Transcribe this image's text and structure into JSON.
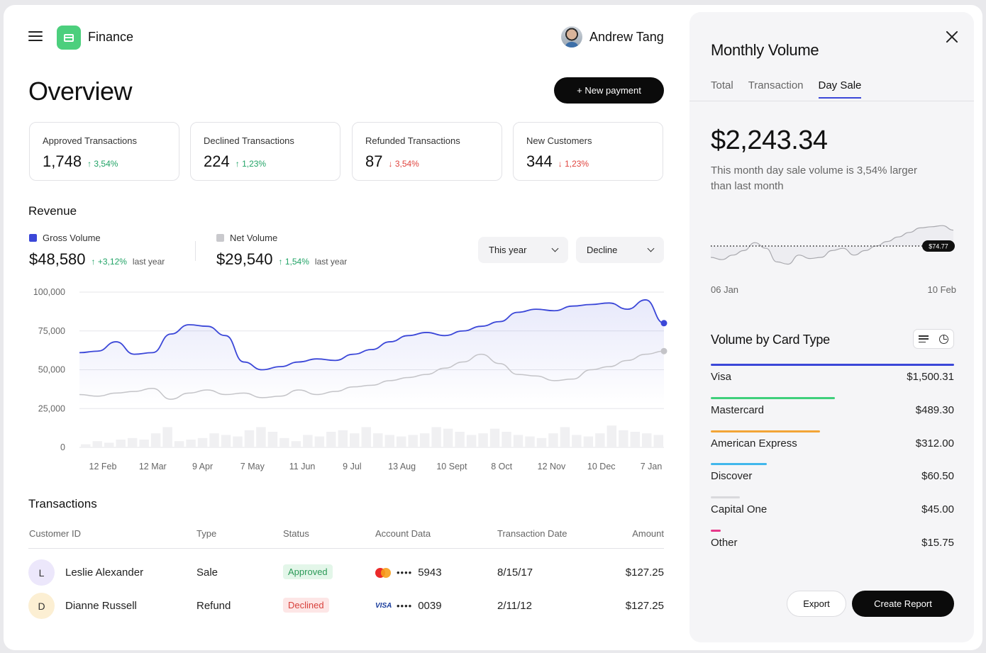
{
  "header": {
    "app_name": "Finance",
    "user_name": "Andrew Tang"
  },
  "page_title": "Overview",
  "new_payment_label": "+ New payment",
  "stats": [
    {
      "label": "Approved Transactions",
      "value": "1,748",
      "change": "3,54%",
      "direction": "up"
    },
    {
      "label": "Declined Transactions",
      "value": "224",
      "change": "1,23%",
      "direction": "up"
    },
    {
      "label": "Refunded Transactions",
      "value": "87",
      "change": "3,54%",
      "direction": "down"
    },
    {
      "label": "New Customers",
      "value": "344",
      "change": "1,23%",
      "direction": "down"
    }
  ],
  "revenue": {
    "title": "Revenue",
    "gross": {
      "label": "Gross Volume",
      "value": "$48,580",
      "change": "+3,12%",
      "suffix": "last year",
      "color": "#3b47d8"
    },
    "net": {
      "label": "Net Volume",
      "value": "$29,540",
      "change": "1,54%",
      "suffix": "last year",
      "color": "#c9c9cd"
    },
    "dropdowns": {
      "period": "This year",
      "trend": "Decline"
    }
  },
  "chart_data": {
    "type": "line",
    "ylim": [
      0,
      100000
    ],
    "y_ticks": [
      "100,000",
      "75,000",
      "50,000",
      "25,000",
      "0"
    ],
    "x_ticks": [
      "12 Feb",
      "12 Mar",
      "9 Apr",
      "7 May",
      "11 Jun",
      "9 Jul",
      "13 Aug",
      "10 Sept",
      "8 Oct",
      "12 Nov",
      "10 Dec",
      "7 Jan"
    ],
    "series": [
      {
        "name": "Gross Volume",
        "color": "#3b47d8",
        "values": [
          61000,
          62000,
          68000,
          60000,
          61000,
          73000,
          79000,
          78000,
          72000,
          55000,
          50000,
          52000,
          55000,
          57000,
          56000,
          60000,
          63000,
          68000,
          72000,
          74000,
          72000,
          75000,
          78000,
          81000,
          87000,
          89000,
          88000,
          91000,
          92000,
          93000,
          89000,
          95000,
          80000
        ]
      },
      {
        "name": "Net Volume",
        "color": "#c4c4c8",
        "values": [
          34000,
          33000,
          35000,
          36000,
          38000,
          31000,
          35000,
          37000,
          34000,
          35000,
          32000,
          33000,
          37000,
          34000,
          36000,
          39000,
          40000,
          43000,
          45000,
          47000,
          51000,
          55000,
          60000,
          54000,
          47000,
          46000,
          43000,
          44000,
          50000,
          52000,
          56000,
          60000,
          62000
        ]
      },
      {
        "name": "Bars",
        "color": "#f0f0f2",
        "values": [
          2,
          4,
          3,
          5,
          6,
          5,
          9,
          13,
          4,
          5,
          6,
          9,
          8,
          7,
          11,
          13,
          10,
          6,
          4,
          8,
          7,
          10,
          11,
          9,
          13,
          9,
          8,
          7,
          8,
          9,
          13,
          12,
          10,
          8,
          9,
          12,
          10,
          8,
          7,
          6,
          9,
          13,
          8,
          7,
          9,
          14,
          11,
          10,
          9,
          8
        ]
      }
    ]
  },
  "transactions": {
    "title": "Transactions",
    "columns": [
      "Customer ID",
      "Type",
      "Status",
      "Account Data",
      "Transaction Date",
      "Amount"
    ],
    "rows": [
      {
        "initial": "L",
        "name": "Leslie Alexander",
        "type": "Sale",
        "status": "Approved",
        "status_kind": "ok",
        "card": "mastercard",
        "dots": "••••",
        "last4": "5943",
        "date": "8/15/17",
        "amount": "$127.25",
        "avatar_color": "#ece7fb"
      },
      {
        "initial": "D",
        "name": "Dianne Russell",
        "type": "Refund",
        "status": "Declined",
        "status_kind": "no",
        "card": "visa",
        "card_text": "VISA",
        "dots": "••••",
        "last4": "0039",
        "date": "2/11/12",
        "amount": "$127.25",
        "avatar_color": "#fcefd3"
      }
    ]
  },
  "panel": {
    "title": "Monthly Volume",
    "tabs": [
      "Total",
      "Transaction",
      "Day Sale"
    ],
    "active_tab": 2,
    "amount": "$2,243.34",
    "description": "This month day sale volume is 3,54% larger than last month",
    "spark": {
      "start_label": "06 Jan",
      "end_label": "10 Feb",
      "marker_label": "$74.77",
      "values": [
        50,
        48,
        52,
        56,
        63,
        58,
        46,
        44,
        52,
        49,
        50,
        56,
        58,
        52,
        56,
        60,
        64,
        68,
        72,
        76,
        77,
        78,
        74
      ],
      "baseline": 60
    },
    "card_types": {
      "title": "Volume by Card Type",
      "items": [
        {
          "label": "Visa",
          "value": "$1,500.31",
          "color": "#3b47d8",
          "share": 1.0
        },
        {
          "label": "Mastercard",
          "value": "$489.30",
          "color": "#3fcf7b",
          "share": 0.51
        },
        {
          "label": "American Express",
          "value": "$312.00",
          "color": "#f2a537",
          "share": 0.45
        },
        {
          "label": "Discover",
          "value": "$60.50",
          "color": "#41b7ec",
          "share": 0.23
        },
        {
          "label": "Capital One",
          "value": "$45.00",
          "color": "#d9d9dc",
          "share": 0.12
        },
        {
          "label": "Other",
          "value": "$15.75",
          "color": "#e7388a",
          "share": 0.04
        }
      ]
    },
    "export_label": "Export",
    "create_report_label": "Create Report"
  }
}
